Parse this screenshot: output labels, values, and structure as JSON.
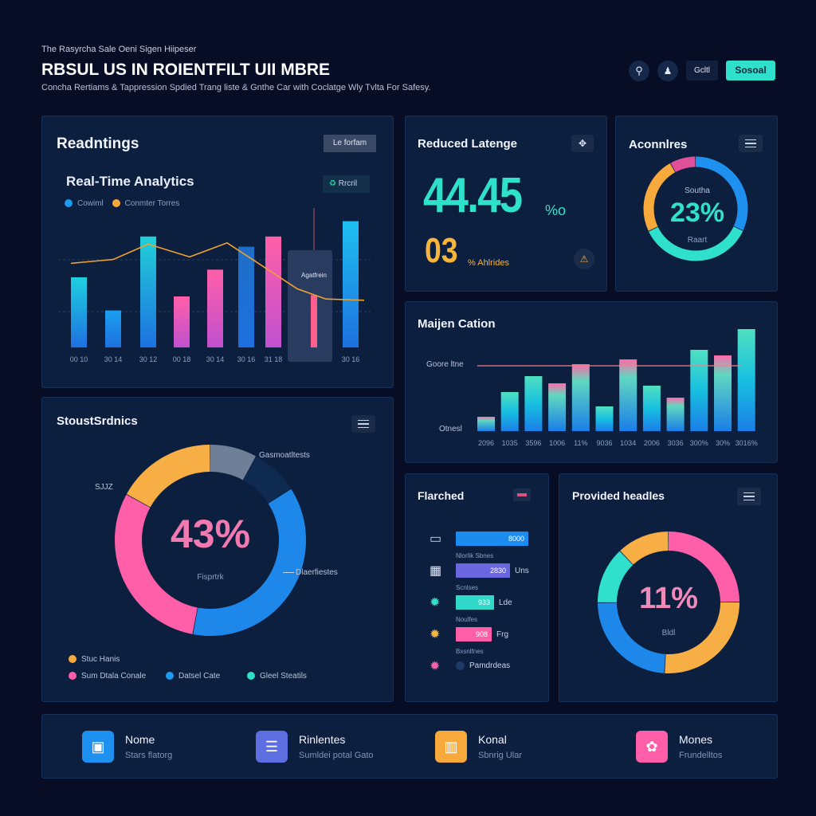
{
  "header": {
    "eyebrow": "The Rasyrcha Sale Oeni Sigen Hiipeser",
    "title": "RBSUL US IN ROIENTFILT UII MBRE",
    "subtitle": "Concha Rertiams & Tappression Spdied Trang liste & Gnthe Car with Coclatge Wly Tvlta For Safesy.",
    "buttons": {
      "text_btn": "Gcltl",
      "primary": "Sosoal"
    },
    "accent": "#2fe0cc"
  },
  "readings": {
    "title": "Readntings",
    "filter_btn": "Le forfam",
    "subtitle": "Real-Time Analytics",
    "action_btn": "Rrcril",
    "legend": [
      {
        "label": "Cowiml",
        "color": "#1e9af0"
      },
      {
        "label": "Conmter Torres",
        "color": "#f7a93b"
      }
    ],
    "highlight_label": "Agatfrein"
  },
  "latency": {
    "title": "Reduced Latenge",
    "big_value": "44.45",
    "big_unit": "%o",
    "sub_value": "03",
    "sub_unit": "% Ahlrides"
  },
  "aconnlres": {
    "title": "Aconnlres",
    "top_label": "Southa",
    "value": "23%",
    "bottom_label": "Raart"
  },
  "majen": {
    "title": "Maijen Cation",
    "ref_label": "Goore ltne",
    "base_label": "Otnesl"
  },
  "stouds": {
    "title": "StoustSrdnics",
    "value": "43%",
    "center_label": "Fisprtrk",
    "callouts": {
      "top": "Gasmoatltests",
      "right": "Dlaerfiestes",
      "left": "SJJZ"
    },
    "legend": [
      {
        "label": "Stuc Hanis",
        "color": "#f7a93b"
      },
      {
        "label": "Sum Dtala Conale",
        "color": "#ff5fa8"
      },
      {
        "label": "Datsel Cate",
        "color": "#1e9af0"
      },
      {
        "label": "Gleel Steatils",
        "color": "#2fe0cc"
      }
    ]
  },
  "flarched": {
    "title": "Flarched",
    "rows": [
      {
        "value": "8000",
        "unit": "",
        "caption": "Nlorlik Sbnes",
        "color": "#1a8cf0",
        "fill": 1.0,
        "icon": "laptop-icon"
      },
      {
        "value": "2830",
        "unit": "Uns",
        "caption": "Scnlses",
        "color": "#6a66e0",
        "fill": 0.75,
        "icon": "grid-icon"
      },
      {
        "value": "933",
        "unit": "Lde",
        "caption": "Noulfes",
        "color": "#2fd8c8",
        "fill": 0.53,
        "icon": "burst-teal-icon"
      },
      {
        "value": "908",
        "unit": "Frg",
        "caption": "Bxsnlfnes",
        "color": "#ff5fa8",
        "fill": 0.49,
        "icon": "burst-orange-icon"
      },
      {
        "value": "",
        "unit": "Pamdrdeas",
        "caption": "",
        "color": "#1c3a64",
        "fill": 0,
        "icon": "burst-pink-icon"
      }
    ]
  },
  "provided": {
    "title": "Provided headles",
    "value": "11%",
    "center_label": "Bldl"
  },
  "footer": [
    {
      "title": "Nome",
      "sub": "Stars flatorg",
      "color": "#1e90f0",
      "icon": "robot-icon",
      "glyph": "▣"
    },
    {
      "title": "Rinlentes",
      "sub": "Sumldei potal Gato",
      "color": "#5c6ee0",
      "icon": "list-icon",
      "glyph": "☰"
    },
    {
      "title": "Konal",
      "sub": "Sbnrig Ular",
      "color": "#f7a93b",
      "icon": "building-icon",
      "glyph": "▥"
    },
    {
      "title": "Mones",
      "sub": "Frundelltos",
      "color": "#ff5fa8",
      "icon": "bag-icon",
      "glyph": "✿"
    }
  ],
  "chart_data": [
    {
      "type": "bar",
      "title": "Real-Time Analytics",
      "categories": [
        "00 10",
        "30 14",
        "30 12",
        "00 18",
        "30 14",
        "30 16",
        "31 18",
        "",
        "30 16"
      ],
      "series": [
        {
          "name": "Cowiml",
          "values": [
            55,
            29,
            87,
            40,
            61,
            79,
            87,
            41,
            99
          ],
          "colors": [
            "#1ed0e0",
            "#1aa0f0",
            "#20d0d8",
            "#ff5fa8",
            "#ff5fa8",
            "#1e6ec8",
            "#ff5fa8",
            "#ff6a90",
            "#1ec0f0"
          ]
        },
        {
          "name": "Conmter Torres",
          "type": "line",
          "values": [
            66,
            69,
            81,
            71,
            82,
            64,
            46,
            38,
            37
          ]
        }
      ],
      "ylim": [
        0,
        100
      ],
      "highlight_index": 7
    },
    {
      "type": "bar",
      "title": "Maijen Cation",
      "categories": [
        "2096",
        "1035",
        "3596",
        "1006",
        "11%",
        "9036",
        "1034",
        "2006",
        "3036",
        "300%",
        "30%",
        "3016%"
      ],
      "values": [
        18,
        49,
        69,
        60,
        84,
        31,
        90,
        57,
        42,
        102,
        95,
        128
      ],
      "reference_line": 82,
      "ylim": [
        0,
        130
      ]
    },
    {
      "type": "pie",
      "title": "Aconnlres",
      "values": [
        32,
        36,
        24,
        8
      ],
      "colors": [
        "#1e90f0",
        "#2fe0cc",
        "#f7a93b",
        "#e0509a"
      ]
    },
    {
      "type": "pie",
      "title": "StoustSrdnics",
      "values": [
        8,
        8,
        37,
        30,
        17
      ],
      "colors": [
        "#6f7f98",
        "#0f2a50",
        "#1e88ea",
        "#ff5fa8",
        "#f7ae45"
      ]
    },
    {
      "type": "pie",
      "title": "Provided headles",
      "values": [
        25,
        26,
        24,
        13,
        12
      ],
      "colors": [
        "#ff5fa8",
        "#f7ae45",
        "#1e88ea",
        "#2fe0cc",
        "#f7ae45"
      ]
    }
  ]
}
